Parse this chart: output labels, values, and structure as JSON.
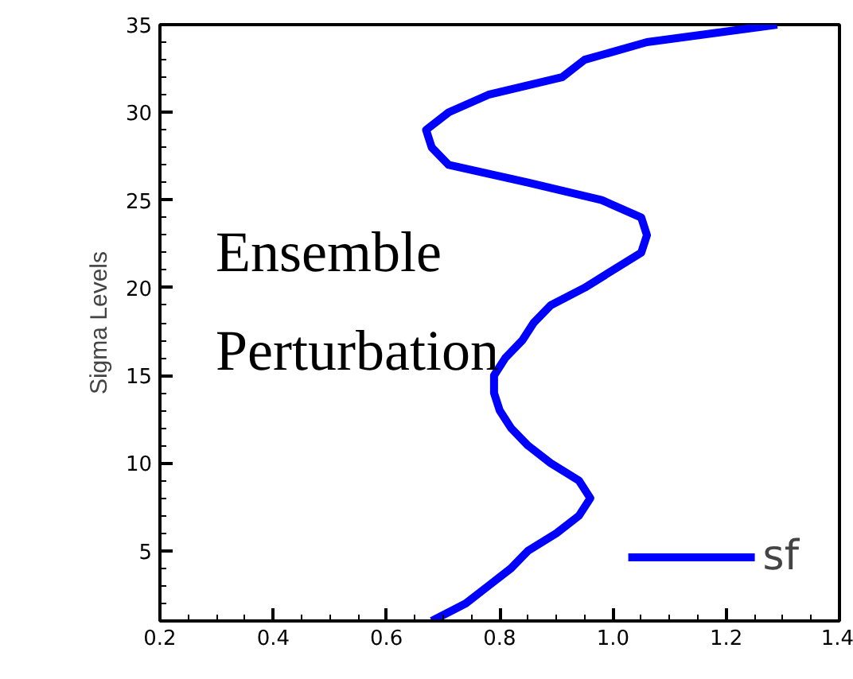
{
  "chart_data": {
    "type": "line",
    "ylabel": "Sigma Levels",
    "x": [
      0.68,
      0.74,
      0.78,
      0.82,
      0.85,
      0.9,
      0.94,
      0.96,
      0.94,
      0.89,
      0.85,
      0.82,
      0.8,
      0.79,
      0.79,
      0.81,
      0.84,
      0.86,
      0.89,
      0.95,
      1.0,
      1.05,
      1.06,
      1.05,
      0.98,
      0.85,
      0.71,
      0.68,
      0.67,
      0.71,
      0.78,
      0.91,
      0.95,
      1.06,
      1.29
    ],
    "series": [
      {
        "name": "sf",
        "color": "#0000ff",
        "values": [
          1,
          2,
          3,
          4,
          5,
          6,
          7,
          8,
          9,
          10,
          11,
          12,
          13,
          14,
          15,
          16,
          17,
          18,
          19,
          20,
          21,
          22,
          23,
          24,
          25,
          26,
          27,
          28,
          29,
          30,
          31,
          32,
          33,
          34,
          35
        ]
      }
    ],
    "xlim": [
      0.2,
      1.4
    ],
    "ylim": [
      1,
      35
    ],
    "xticks": [
      0.2,
      0.4,
      0.6,
      0.8,
      {
        "value": 1.0,
        "label": "1.0"
      },
      1.2,
      1.4
    ],
    "yticks": [
      5,
      10,
      15,
      20,
      25,
      30,
      35
    ],
    "annotations": [
      "Ensemble",
      "Perturbation"
    ],
    "legend": "bottom right",
    "grid": false,
    "line_style": "solid",
    "marker": "none"
  }
}
